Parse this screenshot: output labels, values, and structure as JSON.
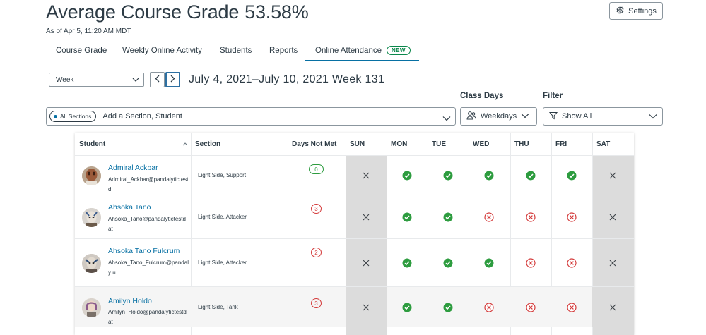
{
  "header": {
    "title": "Average Course Grade",
    "grade": "53.58%",
    "as_of": "As of Apr 5, 11:20 AM MDT",
    "settings_label": "Settings"
  },
  "tabs": [
    {
      "label": "Course Grade"
    },
    {
      "label": "Weekly Online Activity"
    },
    {
      "label": "Students"
    },
    {
      "label": "Reports"
    },
    {
      "label": "Online Attendance",
      "badge": "NEW",
      "active": true
    }
  ],
  "toolbar": {
    "period_value": "Week",
    "date_range": "July 4, 2021–July 10, 2021 Week 131"
  },
  "filters": {
    "section_pill": "All Sections",
    "section_placeholder": "Add a Section, Student",
    "class_days_label": "Class Days",
    "class_days_value": "Weekdays",
    "filter_label": "Filter",
    "filter_value": "Show All"
  },
  "table": {
    "headers": {
      "student": "Student",
      "section": "Section",
      "days_not_met": "Days Not Met",
      "sun": "SUN",
      "mon": "MON",
      "tue": "TUE",
      "wed": "WED",
      "thu": "THU",
      "fri": "FRI",
      "sat": "SAT"
    },
    "rows": [
      {
        "name": "Admiral Ackbar",
        "email": "Admiral_Ackbar@pandalytictestd",
        "section": "Light Side, Support",
        "days_not_met": "0",
        "days": [
          "x",
          "met",
          "met",
          "met",
          "met",
          "met",
          "x"
        ]
      },
      {
        "name": "Ahsoka Tano",
        "email": "Ahsoka_Tano@pandalytictestdat",
        "section": "Light Side, Attacker",
        "days_not_met": "3",
        "days": [
          "x",
          "met",
          "met",
          "notmet",
          "notmet",
          "notmet",
          "x"
        ]
      },
      {
        "name": "Ahsoka Tano Fulcrum",
        "email": "Ahsoka_Tano_Fulcrum@pandaly u",
        "section": "Light Side, Attacker",
        "days_not_met": "2",
        "days": [
          "x",
          "met",
          "met",
          "met",
          "notmet",
          "notmet",
          "x"
        ]
      },
      {
        "name": "Amilyn Holdo",
        "email": "Amilyn_Holdo@pandalytictestdat",
        "section": "Light Side, Tank",
        "days_not_met": "3",
        "days": [
          "x",
          "met",
          "met",
          "notmet",
          "notmet",
          "notmet",
          "x"
        ]
      }
    ]
  },
  "colors": {
    "accent": "#0770a3",
    "met_green": "#2d9c3f",
    "notmet_red": "#d43b3b",
    "weekend_gray": "#dcdcdc"
  }
}
